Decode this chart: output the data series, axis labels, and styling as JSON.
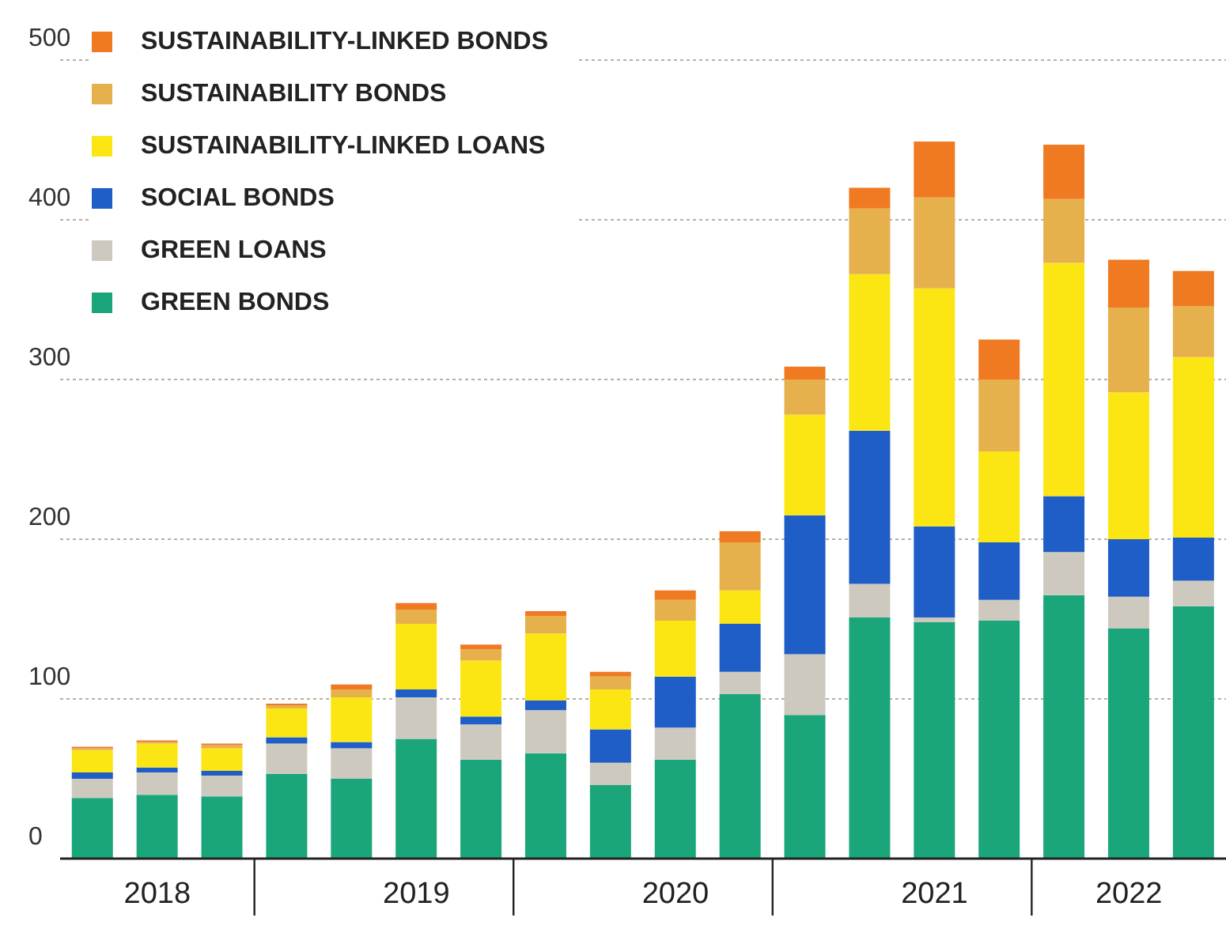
{
  "chart_data": {
    "type": "bar",
    "stacked": true,
    "categories": [
      null,
      "2018",
      null,
      null,
      null,
      "2019",
      null,
      null,
      null,
      "2020",
      null,
      null,
      null,
      "2021",
      null,
      null,
      "2022",
      null
    ],
    "series": [
      {
        "name": "GREEN BONDS",
        "color": "#1aa67a",
        "values": [
          38,
          40,
          39,
          53,
          50,
          75,
          62,
          66,
          46,
          62,
          103,
          90,
          151,
          148,
          149,
          165,
          144,
          158
        ]
      },
      {
        "name": "GREEN LOANS",
        "color": "#cdc9bf",
        "values": [
          12,
          14,
          13,
          19,
          19,
          26,
          22,
          27,
          14,
          20,
          14,
          38,
          21,
          3,
          13,
          27,
          20,
          16
        ]
      },
      {
        "name": "SOCIAL BONDS",
        "color": "#1f5ec6",
        "values": [
          4,
          3,
          3,
          4,
          4,
          5,
          5,
          6,
          21,
          32,
          30,
          87,
          96,
          57,
          36,
          35,
          36,
          27
        ]
      },
      {
        "name": "SUSTAINABILITY-LINKED LOANS",
        "color": "#fbe614",
        "values": [
          14,
          15,
          14,
          18,
          28,
          41,
          35,
          42,
          25,
          35,
          21,
          63,
          98,
          149,
          57,
          146,
          92,
          113
        ]
      },
      {
        "name": "SUSTAINABILITY BONDS",
        "color": "#e6b04c",
        "values": [
          1,
          1,
          2,
          2,
          5,
          9,
          7,
          11,
          8,
          13,
          30,
          22,
          41,
          57,
          45,
          40,
          53,
          32
        ]
      },
      {
        "name": "SUSTAINABILITY-LINKED BONDS",
        "color": "#f07a22",
        "values": [
          1,
          1,
          1,
          1,
          3,
          4,
          3,
          3,
          3,
          6,
          7,
          8,
          13,
          35,
          25,
          34,
          30,
          22
        ]
      }
    ],
    "ylim": [
      0,
      500
    ],
    "yticks": [
      0,
      100,
      200,
      300,
      400,
      500
    ],
    "grid": "y",
    "legend": "top left"
  }
}
